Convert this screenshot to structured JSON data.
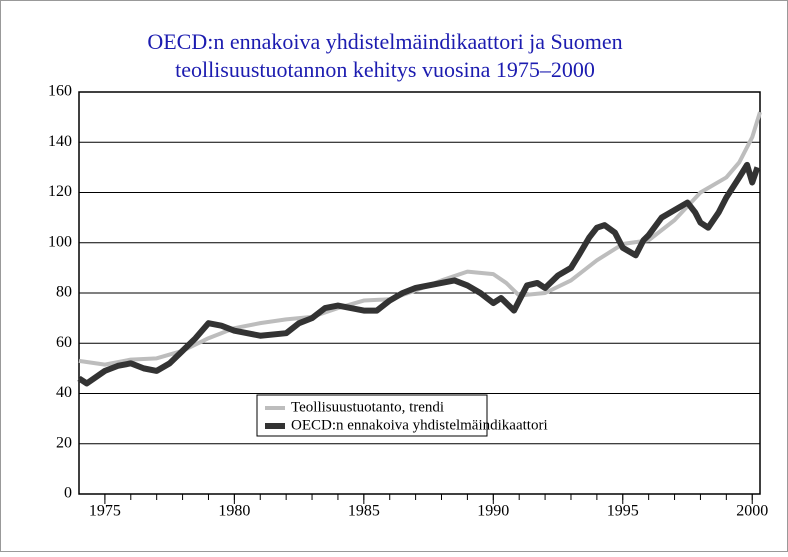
{
  "chart_data": {
    "type": "line",
    "title": [
      "OECD:n ennakoiva yhdistelmäindikaattori ja Suomen",
      "teollisuustuotannon kehitys vuosina 1975–2000"
    ],
    "xlim": [
      1974,
      2000.3
    ],
    "xticks": [
      1975,
      1980,
      1985,
      1990,
      1995,
      2000
    ],
    "xminorticks": [
      1975,
      1976,
      1977,
      1978,
      1979,
      1980,
      1981,
      1982,
      1983,
      1984,
      1985,
      1986,
      1987,
      1988,
      1989,
      1990,
      1991,
      1992,
      1993,
      1994,
      1995,
      1996,
      1997,
      1998,
      1999,
      2000
    ],
    "ylim": [
      0,
      160
    ],
    "yticks": [
      0,
      20,
      40,
      60,
      80,
      100,
      120,
      140,
      160
    ],
    "grid": true,
    "series": [
      {
        "name": "Teollisuustuotanto, trendi",
        "color": "#bdbdbd",
        "x": [
          1974,
          1975,
          1976,
          1977,
          1978,
          1979,
          1980,
          1981,
          1982,
          1983,
          1984,
          1985,
          1986,
          1987,
          1988,
          1989,
          1990,
          1990.5,
          1991,
          1992,
          1993,
          1994,
          1995,
          1996,
          1997,
          1998,
          1999,
          1999.5,
          2000,
          2000.3
        ],
        "values": [
          53,
          51.5,
          53.5,
          54,
          57,
          62,
          66,
          68,
          69.5,
          70.5,
          74,
          77,
          77.5,
          81,
          85,
          88.5,
          87.5,
          84,
          79,
          80,
          85,
          93,
          99.5,
          101,
          109,
          120,
          126,
          132,
          142,
          152
        ]
      },
      {
        "name": "OECD:n ennakoiva yhdistelmäindikaattori",
        "color": "#333333",
        "x": [
          1974,
          1974.3,
          1975,
          1975.5,
          1976,
          1976.5,
          1977,
          1977.5,
          1978,
          1978.5,
          1979,
          1979.5,
          1980,
          1980.5,
          1981,
          1982,
          1982.5,
          1983,
          1983.5,
          1984,
          1984.5,
          1985,
          1985.5,
          1986,
          1986.5,
          1987,
          1987.5,
          1988,
          1988.5,
          1989,
          1989.5,
          1990,
          1990.3,
          1990.8,
          1991,
          1991.3,
          1991.7,
          1992,
          1992.5,
          1993,
          1993.3,
          1993.7,
          1994,
          1994.3,
          1994.7,
          1995,
          1995.5,
          1995.8,
          1996,
          1996.5,
          1997,
          1997.5,
          1997.8,
          1998,
          1998.3,
          1998.7,
          1999,
          1999.5,
          1999.8,
          2000,
          2000.2
        ],
        "values": [
          46,
          44,
          49,
          51,
          52,
          50,
          49,
          52,
          57,
          62,
          68,
          67,
          65,
          64,
          63,
          64,
          68,
          70,
          74,
          75,
          74,
          73,
          73,
          77,
          80,
          82,
          83,
          84,
          85,
          83,
          80,
          76,
          78,
          73,
          77,
          83,
          84,
          82,
          87,
          90,
          95,
          102,
          106,
          107,
          104,
          98,
          95,
          101,
          103,
          110,
          113,
          116,
          112,
          108,
          106,
          112,
          118,
          126,
          131,
          124,
          130
        ]
      }
    ]
  }
}
